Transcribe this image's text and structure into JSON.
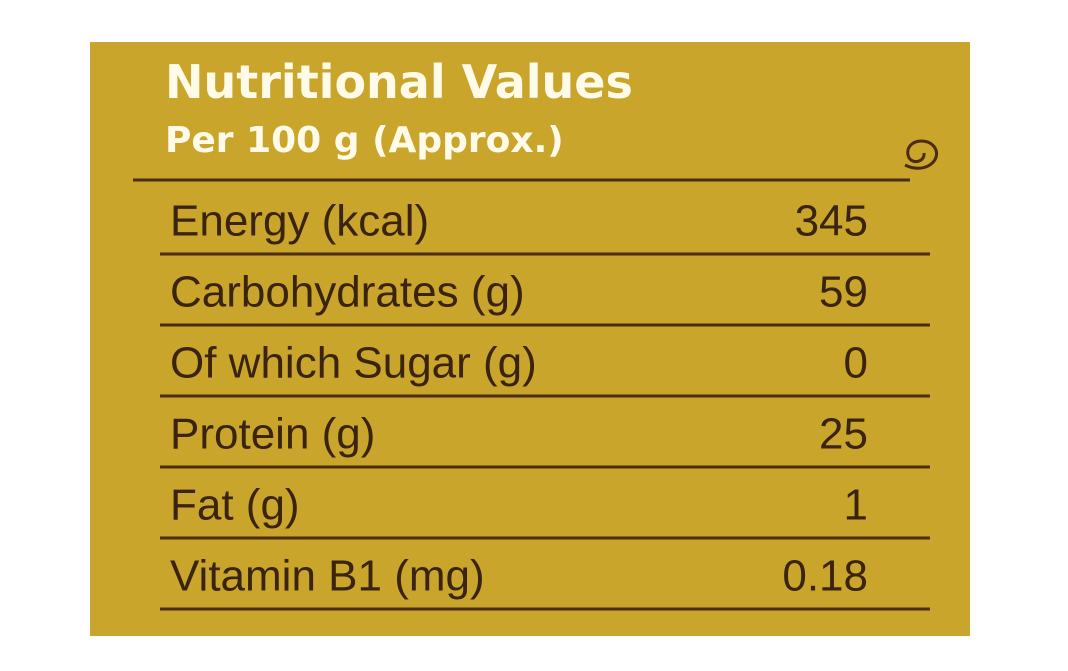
{
  "header": {
    "title": "Nutritional Values",
    "subtitle": "Per 100 g (Approx.)"
  },
  "table": {
    "rows": [
      [
        "Energy (kcal)",
        "345"
      ],
      [
        "Carbohydrates (g)",
        "59"
      ],
      [
        "Of which Sugar (g)",
        "0"
      ],
      [
        "Protein (g)",
        "25"
      ],
      [
        "Fat (g)",
        "1"
      ],
      [
        "Vitamin B1 (mg)",
        "0.18"
      ]
    ]
  }
}
